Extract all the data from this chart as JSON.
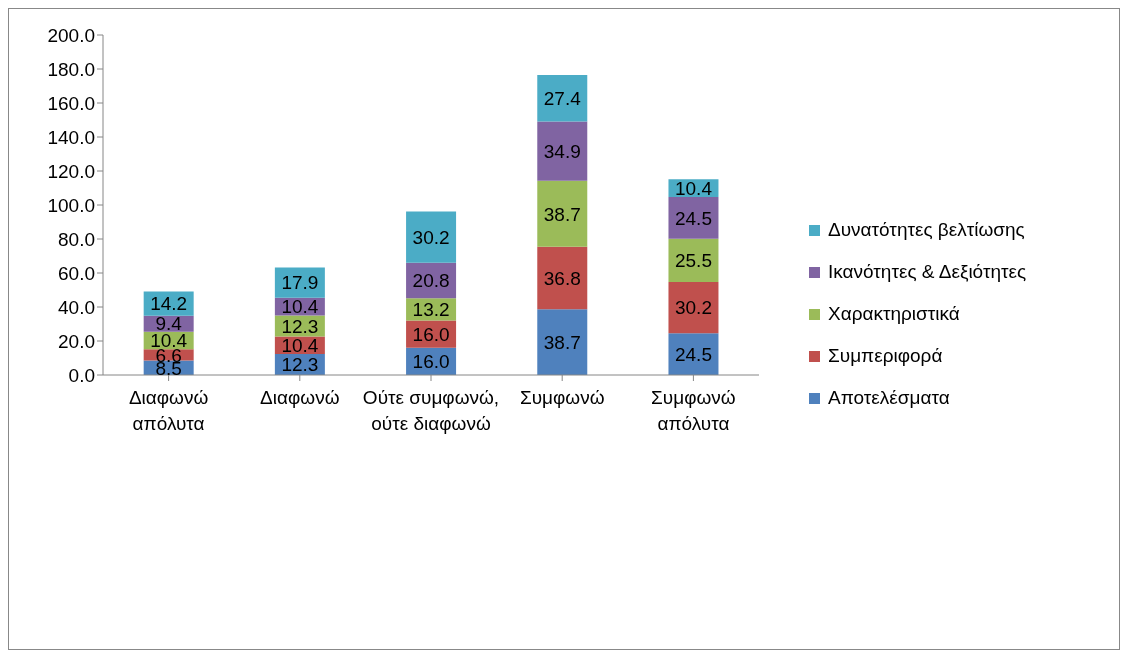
{
  "chart_data": {
    "type": "bar",
    "stacked": true,
    "categories": [
      "Διαφωνώ απόλυτα",
      "Διαφωνώ",
      "Ούτε συμφωνώ, ούτε διαφωνώ",
      "Συμφωνώ",
      "Συμφωνώ απόλυτα"
    ],
    "series": [
      {
        "name": "Αποτελέσματα",
        "color": "#4f81bd",
        "values": [
          8.5,
          12.3,
          16.0,
          38.7,
          24.5
        ],
        "value_labels": [
          "8.5",
          "12.3",
          "16.0",
          "38.7",
          "24.5"
        ]
      },
      {
        "name": "Συμπεριφορά",
        "color": "#c0504d",
        "values": [
          6.6,
          10.4,
          16.0,
          36.8,
          30.2
        ],
        "value_labels": [
          "6.6",
          "10.4",
          "16.0",
          "36.8",
          "30.2"
        ]
      },
      {
        "name": "Χαρακτηριστικά",
        "color": "#9bbb59",
        "values": [
          10.4,
          12.3,
          13.2,
          38.7,
          25.5
        ],
        "value_labels": [
          "10.4",
          "12.3",
          "13.2",
          "38.7",
          "25.5"
        ]
      },
      {
        "name": "Ικανότητες & Δεξιότητες",
        "color": "#8064a2",
        "values": [
          9.4,
          10.4,
          20.8,
          34.9,
          24.5
        ],
        "value_labels": [
          "9.4",
          "10.4",
          "20.8",
          "34.9",
          "24.5"
        ]
      },
      {
        "name": "Δυνατότητες βελτίωσης",
        "color": "#4bacc6",
        "values": [
          14.2,
          17.9,
          30.2,
          27.4,
          10.4
        ],
        "value_labels": [
          "14.2",
          "17.9",
          "30.2",
          "27.4",
          "10.4"
        ]
      }
    ],
    "ylim": [
      0,
      200
    ],
    "yticks": [
      {
        "value": 0,
        "label": "0.0"
      },
      {
        "value": 20,
        "label": "20.0"
      },
      {
        "value": 40,
        "label": "40.0"
      },
      {
        "value": 60,
        "label": "60.0"
      },
      {
        "value": 80,
        "label": "80.0"
      },
      {
        "value": 100,
        "label": "100.0"
      },
      {
        "value": 120,
        "label": "120.0"
      },
      {
        "value": 140,
        "label": "140.0"
      },
      {
        "value": 160,
        "label": "160.0"
      },
      {
        "value": 180,
        "label": "180.0"
      },
      {
        "value": 200,
        "label": "200.0"
      }
    ],
    "grid": false,
    "legend": "right"
  }
}
